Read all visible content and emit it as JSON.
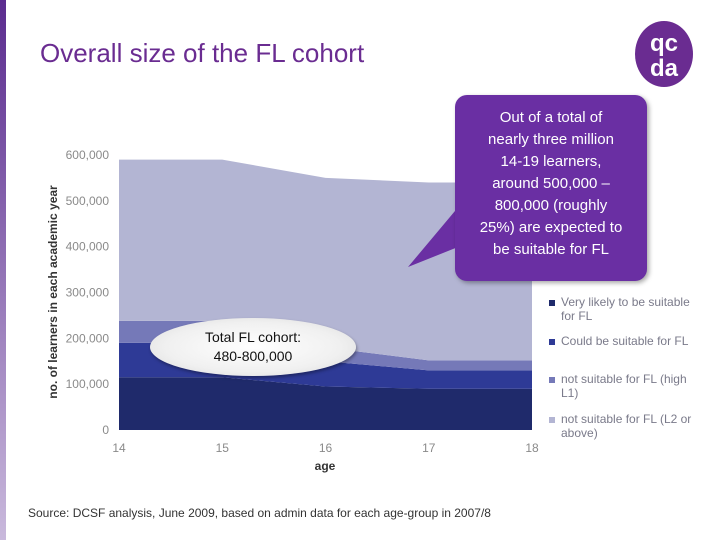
{
  "title": "Overall size of the FL cohort",
  "logo": {
    "line1": "qc",
    "line2": "da",
    "color": "#6a2c91"
  },
  "callout": {
    "lines": [
      "Out of a total of",
      "nearly three million",
      "14-19 learners,",
      "around 500,000 –",
      "800,000 (roughly",
      "25%) are expected to",
      "be suitable for FL"
    ],
    "color": "#6a2fa3"
  },
  "cohort_label": {
    "line1": "Total FL cohort:",
    "line2": "480-800,000"
  },
  "source": "Source: DCSF analysis, June 2009, based on admin data for each age-group in 2007/8",
  "chart_data": {
    "type": "area",
    "stacked": true,
    "x": [
      14,
      15,
      16,
      17,
      18
    ],
    "xlabel": "age",
    "ylabel": "no. of learners in each academic year",
    "ylim": [
      0,
      600000
    ],
    "yticks": [
      "0",
      "100,000",
      "200,000",
      "300,000",
      "400,000",
      "500,000",
      "600,000"
    ],
    "xticks": [
      "14",
      "15",
      "16",
      "17",
      "18"
    ],
    "grid": false,
    "legend_position": "right",
    "series": [
      {
        "name": "Very likely to be suitable for FL",
        "color": "#1f2a6b",
        "values": [
          115000,
          115000,
          95000,
          90000,
          90000
        ]
      },
      {
        "name": "Could be suitable for FL",
        "color": "#2e3a96",
        "values": [
          75000,
          75000,
          55000,
          40000,
          40000
        ]
      },
      {
        "name": "not suitable for FL (high L1)",
        "color": "#7579b8",
        "values": [
          48000,
          48000,
          30000,
          22000,
          22000
        ]
      },
      {
        "name": "not suitable for FL (L2 or above)",
        "color": "#b3b5d3",
        "values": [
          352000,
          352000,
          370000,
          388000,
          388000
        ]
      }
    ]
  }
}
